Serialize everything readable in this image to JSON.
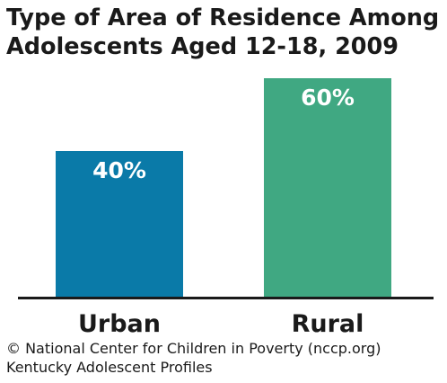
{
  "title_lines": [
    "Type of Area of Residence Among",
    "Adolescents Aged 12-18, 2009"
  ],
  "footer": {
    "copyright": "© National Center for Children in Poverty (nccp.org)",
    "source": "Kentucky Adolescent Profiles"
  },
  "colors": {
    "urban": "#0a7aa8",
    "rural": "#40a882",
    "axis": "#1a1a1a",
    "label": "#ffffff"
  },
  "chart_data": {
    "type": "bar",
    "title": "Type of Area of Residence Among Adolescents Aged 12-18, 2009",
    "categories": [
      "Urban",
      "Rural"
    ],
    "values": [
      40,
      60
    ],
    "data_labels": [
      "40%",
      "60%"
    ],
    "unit": "%",
    "ylim": [
      0,
      60
    ],
    "grid": false,
    "legend": "none"
  }
}
